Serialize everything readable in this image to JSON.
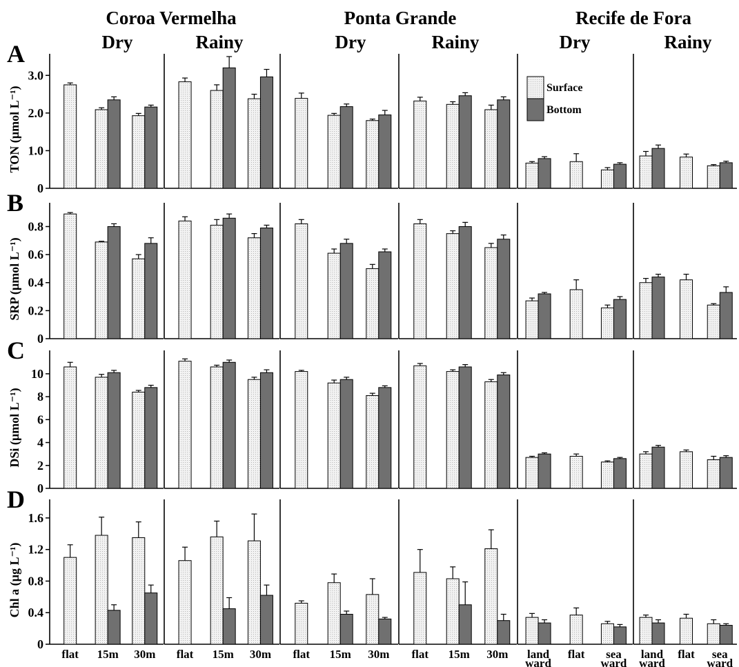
{
  "colors": {
    "surface": "#f2f2f2",
    "bottom": "#707070",
    "axis": "#000000"
  },
  "sites": [
    {
      "name": "Coroa Vermelha",
      "categories": [
        "flat",
        "15m",
        "30m"
      ]
    },
    {
      "name": "Ponta Grande",
      "categories": [
        "flat",
        "15m",
        "30m"
      ]
    },
    {
      "name": "Recife de Fora",
      "categories": [
        "land ward",
        "flat",
        "sea ward"
      ]
    }
  ],
  "seasons": [
    "Dry",
    "Rainy"
  ],
  "legend": [
    "Surface",
    "Bottom"
  ],
  "chart_data": [
    {
      "type": "bar",
      "panel": "A",
      "ylabel": "TON (µmol L⁻¹)",
      "ylim": [
        0,
        3.5
      ],
      "yticks": [
        "0",
        "1.0",
        "2.0",
        "3.0"
      ],
      "ytick_values": [
        0,
        1,
        2,
        3
      ],
      "series_names": [
        "Surface",
        "Bottom"
      ],
      "subplots": [
        {
          "site": "Coroa Vermelha",
          "season": "Dry",
          "surface": [
            2.75,
            2.09,
            1.93
          ],
          "surface_err": [
            0.05,
            0.05,
            0.06
          ],
          "bottom": [
            null,
            2.35,
            2.16
          ],
          "bottom_err": [
            null,
            0.08,
            0.05
          ]
        },
        {
          "site": "Coroa Vermelha",
          "season": "Rainy",
          "surface": [
            2.83,
            2.6,
            2.38
          ],
          "surface_err": [
            0.1,
            0.15,
            0.12
          ],
          "bottom": [
            null,
            3.2,
            2.96
          ],
          "bottom_err": [
            null,
            0.3,
            0.2
          ]
        },
        {
          "site": "Ponta Grande",
          "season": "Dry",
          "surface": [
            2.39,
            1.94,
            1.8
          ],
          "surface_err": [
            0.14,
            0.05,
            0.04
          ],
          "bottom": [
            null,
            2.17,
            1.95
          ],
          "bottom_err": [
            null,
            0.07,
            0.12
          ]
        },
        {
          "site": "Ponta Grande",
          "season": "Rainy",
          "surface": [
            2.32,
            2.23,
            2.09
          ],
          "surface_err": [
            0.1,
            0.07,
            0.12
          ],
          "bottom": [
            null,
            2.46,
            2.35
          ],
          "bottom_err": [
            null,
            0.08,
            0.08
          ]
        },
        {
          "site": "Recife de Fora",
          "season": "Dry",
          "surface": [
            0.67,
            0.71,
            0.49
          ],
          "surface_err": [
            0.04,
            0.21,
            0.06
          ],
          "bottom": [
            0.79,
            null,
            0.64
          ],
          "bottom_err": [
            0.05,
            null,
            0.04
          ]
        },
        {
          "site": "Recife de Fora",
          "season": "Rainy",
          "surface": [
            0.86,
            0.83,
            0.6
          ],
          "surface_err": [
            0.12,
            0.08,
            0.03
          ],
          "bottom": [
            1.06,
            null,
            0.68
          ],
          "bottom_err": [
            0.09,
            null,
            0.04
          ]
        }
      ]
    },
    {
      "type": "bar",
      "panel": "B",
      "ylabel": "SRP (µmol L⁻¹)",
      "ylim": [
        0,
        0.95
      ],
      "yticks": [
        "0",
        "0.2",
        "0.4",
        "0.6",
        "0.8"
      ],
      "ytick_values": [
        0,
        0.2,
        0.4,
        0.6,
        0.8
      ],
      "series_names": [
        "Surface",
        "Bottom"
      ],
      "subplots": [
        {
          "site": "Coroa Vermelha",
          "season": "Dry",
          "surface": [
            0.89,
            0.69,
            0.57
          ],
          "surface_err": [
            0.01,
            0.005,
            0.03
          ],
          "bottom": [
            null,
            0.8,
            0.68
          ],
          "bottom_err": [
            null,
            0.02,
            0.04
          ]
        },
        {
          "site": "Coroa Vermelha",
          "season": "Rainy",
          "surface": [
            0.84,
            0.81,
            0.72
          ],
          "surface_err": [
            0.03,
            0.04,
            0.03
          ],
          "bottom": [
            null,
            0.86,
            0.79
          ],
          "bottom_err": [
            null,
            0.03,
            0.02
          ]
        },
        {
          "site": "Ponta Grande",
          "season": "Dry",
          "surface": [
            0.82,
            0.61,
            0.5
          ],
          "surface_err": [
            0.03,
            0.03,
            0.03
          ],
          "bottom": [
            null,
            0.68,
            0.62
          ],
          "bottom_err": [
            null,
            0.03,
            0.02
          ]
        },
        {
          "site": "Ponta Grande",
          "season": "Rainy",
          "surface": [
            0.82,
            0.75,
            0.65
          ],
          "surface_err": [
            0.03,
            0.02,
            0.03
          ],
          "bottom": [
            null,
            0.8,
            0.71
          ],
          "bottom_err": [
            null,
            0.03,
            0.03
          ]
        },
        {
          "site": "Recife de Fora",
          "season": "Dry",
          "surface": [
            0.27,
            0.35,
            0.22
          ],
          "surface_err": [
            0.02,
            0.07,
            0.02
          ],
          "bottom": [
            0.32,
            null,
            0.28
          ],
          "bottom_err": [
            0.01,
            null,
            0.02
          ]
        },
        {
          "site": "Recife de Fora",
          "season": "Rainy",
          "surface": [
            0.4,
            0.42,
            0.24
          ],
          "surface_err": [
            0.03,
            0.04,
            0.01
          ],
          "bottom": [
            0.44,
            null,
            0.33
          ],
          "bottom_err": [
            0.02,
            null,
            0.04
          ]
        }
      ]
    },
    {
      "type": "bar",
      "panel": "C",
      "ylabel": "DSi (µmol L⁻¹)",
      "ylim": [
        0,
        11.8
      ],
      "yticks": [
        "0",
        "2",
        "4",
        "6",
        "8",
        "10"
      ],
      "ytick_values": [
        0,
        2,
        4,
        6,
        8,
        10
      ],
      "series_names": [
        "Surface",
        "Bottom"
      ],
      "subplots": [
        {
          "site": "Coroa Vermelha",
          "season": "Dry",
          "surface": [
            10.6,
            9.7,
            8.4
          ],
          "surface_err": [
            0.4,
            0.25,
            0.15
          ],
          "bottom": [
            null,
            10.1,
            8.8
          ],
          "bottom_err": [
            null,
            0.2,
            0.2
          ]
        },
        {
          "site": "Coroa Vermelha",
          "season": "Rainy",
          "surface": [
            11.1,
            10.6,
            9.5
          ],
          "surface_err": [
            0.2,
            0.15,
            0.2
          ],
          "bottom": [
            null,
            11.0,
            10.1
          ],
          "bottom_err": [
            null,
            0.2,
            0.25
          ]
        },
        {
          "site": "Ponta Grande",
          "season": "Dry",
          "surface": [
            10.2,
            9.2,
            8.1
          ],
          "surface_err": [
            0.1,
            0.25,
            0.2
          ],
          "bottom": [
            null,
            9.5,
            8.8
          ],
          "bottom_err": [
            null,
            0.2,
            0.15
          ]
        },
        {
          "site": "Ponta Grande",
          "season": "Rainy",
          "surface": [
            10.7,
            10.2,
            9.3
          ],
          "surface_err": [
            0.2,
            0.15,
            0.2
          ],
          "bottom": [
            null,
            10.6,
            9.9
          ],
          "bottom_err": [
            null,
            0.2,
            0.2
          ]
        },
        {
          "site": "Recife de Fora",
          "season": "Dry",
          "surface": [
            2.7,
            2.8,
            2.3
          ],
          "surface_err": [
            0.1,
            0.2,
            0.1
          ],
          "bottom": [
            3.0,
            null,
            2.6
          ],
          "bottom_err": [
            0.1,
            null,
            0.1
          ]
        },
        {
          "site": "Recife de Fora",
          "season": "Rainy",
          "surface": [
            3.0,
            3.2,
            2.5
          ],
          "surface_err": [
            0.2,
            0.15,
            0.3
          ],
          "bottom": [
            3.6,
            null,
            2.7
          ],
          "bottom_err": [
            0.15,
            null,
            0.15
          ]
        }
      ]
    },
    {
      "type": "bar",
      "panel": "D",
      "ylabel": "Chl a (µg L⁻¹)",
      "ylim": [
        0,
        1.8
      ],
      "yticks": [
        "0",
        "0.4",
        "0.8",
        "1.2",
        "1.6"
      ],
      "ytick_values": [
        0,
        0.4,
        0.8,
        1.2,
        1.6
      ],
      "series_names": [
        "Surface",
        "Bottom"
      ],
      "subplots": [
        {
          "site": "Coroa Vermelha",
          "season": "Dry",
          "surface": [
            1.1,
            1.38,
            1.35
          ],
          "surface_err": [
            0.16,
            0.23,
            0.2
          ],
          "bottom": [
            null,
            0.43,
            0.65
          ],
          "bottom_err": [
            null,
            0.07,
            0.1
          ]
        },
        {
          "site": "Coroa Vermelha",
          "season": "Rainy",
          "surface": [
            1.06,
            1.36,
            1.31
          ],
          "surface_err": [
            0.17,
            0.2,
            0.34
          ],
          "bottom": [
            null,
            0.45,
            0.62
          ],
          "bottom_err": [
            null,
            0.14,
            0.13
          ]
        },
        {
          "site": "Ponta Grande",
          "season": "Dry",
          "surface": [
            0.52,
            0.78,
            0.63
          ],
          "surface_err": [
            0.03,
            0.11,
            0.2
          ],
          "bottom": [
            null,
            0.38,
            0.32
          ],
          "bottom_err": [
            null,
            0.04,
            0.02
          ]
        },
        {
          "site": "Ponta Grande",
          "season": "Rainy",
          "surface": [
            0.91,
            0.83,
            1.21
          ],
          "surface_err": [
            0.29,
            0.15,
            0.24
          ],
          "bottom": [
            null,
            0.5,
            0.3
          ],
          "bottom_err": [
            null,
            0.29,
            0.08
          ]
        },
        {
          "site": "Recife de Fora",
          "season": "Dry",
          "surface": [
            0.34,
            0.37,
            0.26
          ],
          "surface_err": [
            0.05,
            0.09,
            0.03
          ],
          "bottom": [
            0.27,
            null,
            0.22
          ],
          "bottom_err": [
            0.04,
            null,
            0.03
          ]
        },
        {
          "site": "Recife de Fora",
          "season": "Rainy",
          "surface": [
            0.34,
            0.33,
            0.26
          ],
          "surface_err": [
            0.03,
            0.05,
            0.05
          ],
          "bottom": [
            0.27,
            null,
            0.24
          ],
          "bottom_err": [
            0.04,
            null,
            0.02
          ]
        }
      ]
    }
  ]
}
